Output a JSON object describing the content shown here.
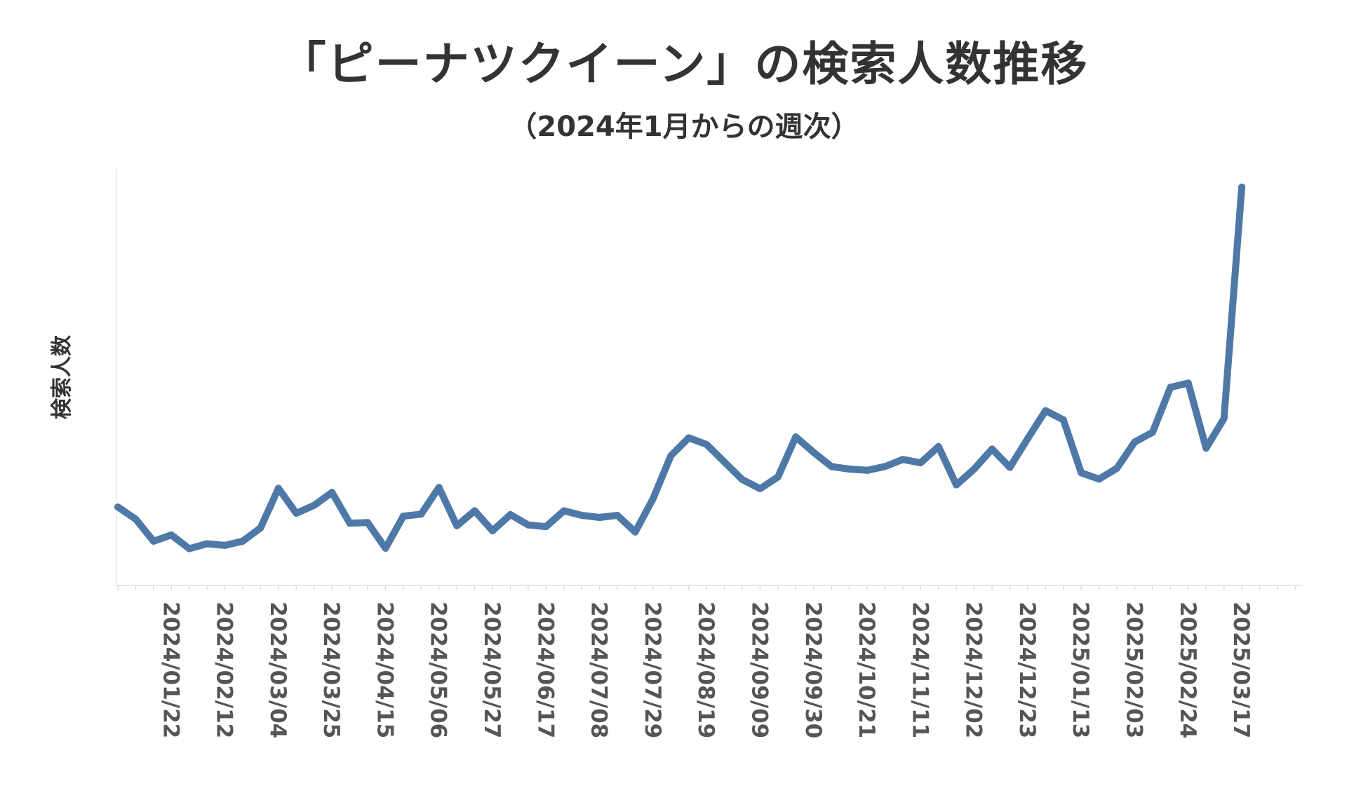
{
  "chart_data": {
    "type": "line",
    "title": "「ピーナツクイーン」の検索人数推移",
    "subtitle": "（2024年1月からの週次）",
    "xlabel": "",
    "ylabel": "検索人数",
    "y_ticks_shown": false,
    "grid": false,
    "line_color": "#4e79a7",
    "ylim": [
      0,
      100
    ],
    "x_start": "2024/01/01",
    "tick_labels": [
      "2024/01/22",
      "2024/02/12",
      "2024/03/04",
      "2024/03/25",
      "2024/04/15",
      "2024/05/06",
      "2024/05/27",
      "2024/06/17",
      "2024/07/08",
      "2024/07/29",
      "2024/08/19",
      "2024/09/09",
      "2024/09/30",
      "2024/10/21",
      "2024/11/11",
      "2024/12/02",
      "2024/12/23",
      "2025/01/13",
      "2025/02/03",
      "2025/02/24",
      "2025/03/17"
    ],
    "series": [
      {
        "name": "検索人数",
        "values": [
          18.8,
          15.9,
          10.6,
          12.1,
          8.8,
          10.0,
          9.6,
          10.6,
          13.8,
          23.3,
          17.3,
          19.2,
          22.3,
          14.9,
          15.1,
          8.9,
          16.6,
          17.1,
          23.5,
          14.3,
          17.9,
          13.1,
          17.0,
          14.5,
          14.1,
          17.9,
          16.8,
          16.3,
          16.8,
          12.8,
          20.8,
          31.1,
          35.4,
          33.8,
          29.6,
          25.4,
          23.2,
          26.0,
          35.6,
          31.9,
          28.5,
          27.9,
          27.6,
          28.5,
          30.2,
          29.4,
          33.3,
          24.1,
          27.9,
          32.7,
          28.3,
          35.2,
          41.9,
          39.7,
          27.0,
          25.5,
          28.1,
          34.4,
          36.7,
          47.5,
          48.5,
          32.9,
          40.0,
          95.5
        ]
      }
    ]
  }
}
